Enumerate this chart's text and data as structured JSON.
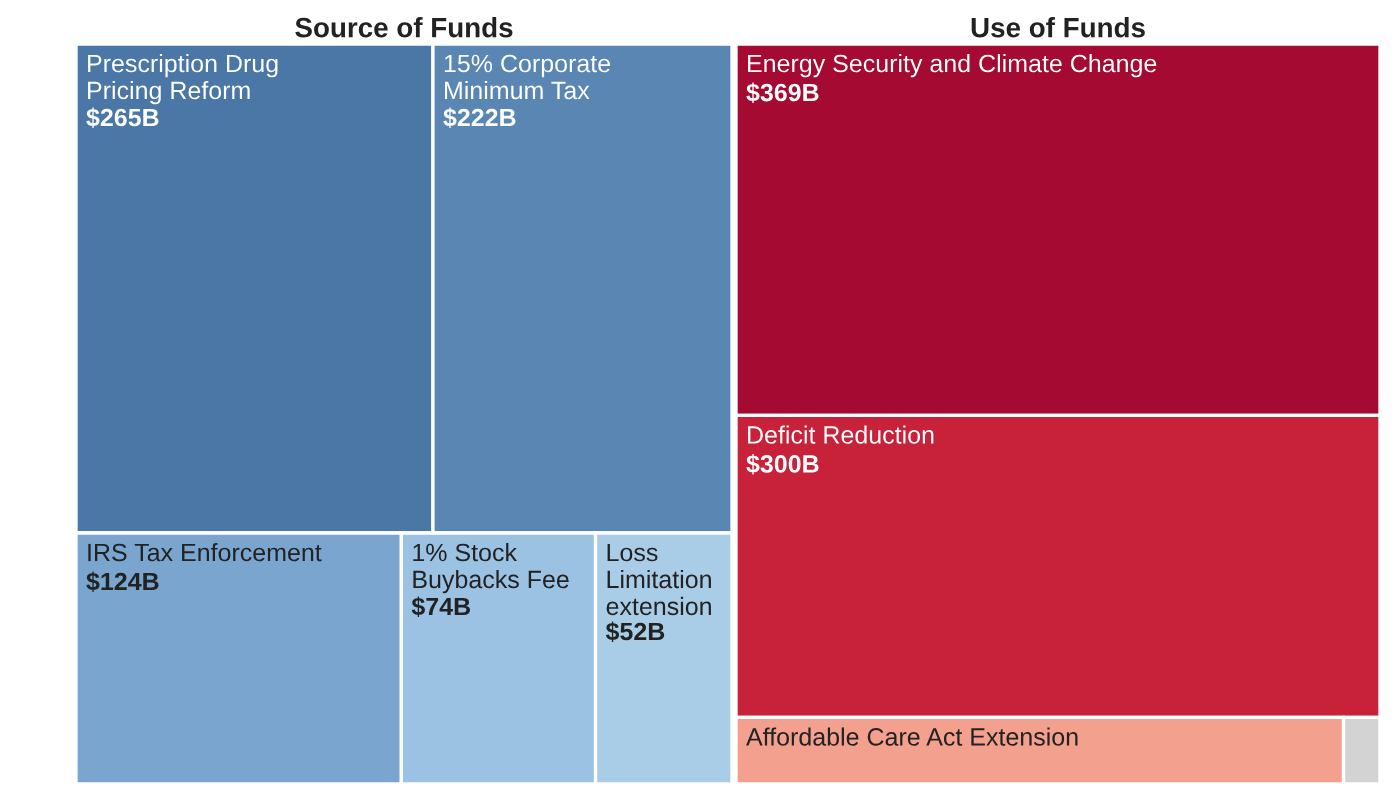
{
  "chart_data": [
    {
      "type": "other",
      "title": "Source of Funds",
      "categories": [
        "Prescription Drug Pricing Reform",
        "15% Corporate Minimum Tax",
        "IRS Tax Enforcement",
        "1% Stock Buybacks Fee",
        "Loss Limitation extension"
      ],
      "values": [
        265,
        222,
        124,
        74,
        52
      ],
      "value_labels": [
        "$265B",
        "$222B",
        "$124B",
        "$74B",
        "$52B"
      ],
      "colors": [
        "#4a77a6",
        "#5a86b3",
        "#79a5cf",
        "#9bc2e2",
        "#a9cce7"
      ]
    },
    {
      "type": "other",
      "title": "Use of Funds",
      "categories": [
        "Energy Security and Climate Change",
        "Deficit Reduction",
        "Affordable Care Act Extension",
        null
      ],
      "values": [
        369,
        300,
        null,
        null
      ],
      "value_labels": [
        "$369B",
        "$300B",
        null,
        null
      ],
      "colors": [
        "#a50a32",
        "#c8213a",
        "#f3a08e",
        "#d3d3d3"
      ]
    }
  ]
}
